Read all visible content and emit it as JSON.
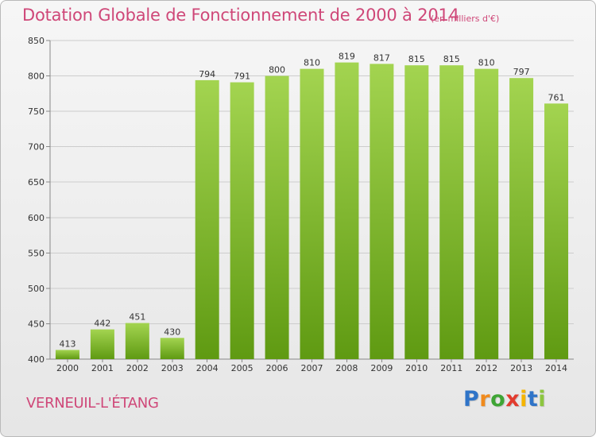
{
  "header": {
    "title": "Dotation Globale de Fonctionnement de 2000 à 2014",
    "unit": "(en milliers d'€)"
  },
  "footer": {
    "commune": "VERNEUIL-L'ÉTANG",
    "logo_letters": [
      {
        "ch": "P",
        "color": "#2f74c8"
      },
      {
        "ch": "r",
        "color": "#f08a1c"
      },
      {
        "ch": "o",
        "color": "#3fa535"
      },
      {
        "ch": "x",
        "color": "#e23b2e"
      },
      {
        "ch": "i",
        "color": "#f5b400"
      },
      {
        "ch": "t",
        "color": "#2f74c8"
      },
      {
        "ch": "i",
        "color": "#8cc63f"
      }
    ]
  },
  "colors": {
    "title": "#cf4778",
    "bar_top": "#a3d450",
    "bar_bottom": "#5f9a12",
    "grid": "#cccccc"
  },
  "chart_data": {
    "type": "bar",
    "title": "Dotation Globale de Fonctionnement de 2000 à 2014",
    "subtitle": "(en milliers d'€)",
    "xlabel": "",
    "ylabel": "",
    "categories": [
      "2000",
      "2001",
      "2002",
      "2003",
      "2004",
      "2005",
      "2006",
      "2007",
      "2008",
      "2009",
      "2010",
      "2011",
      "2012",
      "2013",
      "2014"
    ],
    "values": [
      413,
      442,
      451,
      430,
      794,
      791,
      800,
      810,
      819,
      817,
      815,
      815,
      810,
      797,
      761
    ],
    "ylim": [
      400,
      850
    ],
    "yticks": [
      400,
      450,
      500,
      550,
      600,
      650,
      700,
      750,
      800,
      850
    ],
    "grid": true,
    "data_labels": true
  }
}
